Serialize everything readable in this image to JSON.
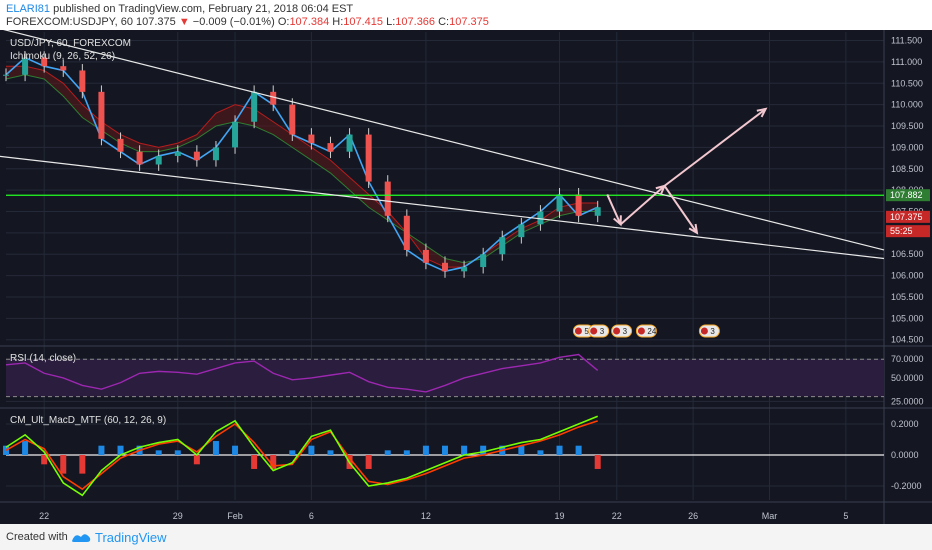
{
  "header": {
    "user": "ELARI81",
    "published_text": "published on TradingView.com, February 21, 2018 06:04 EST",
    "symbol": "FOREXCOM:USDJPY, 60",
    "last": "107.375",
    "change": "−0.009 (−0.01%)",
    "open_label": "O:",
    "open": "107.384",
    "high_label": "H:",
    "high": "107.415",
    "low_label": "L:",
    "low": "107.366",
    "close_label": "C:",
    "close": "107.375"
  },
  "footer": {
    "created": "Created with",
    "brand": "TradingView"
  },
  "colors": {
    "bg": "#141722",
    "grid": "#242938",
    "up": "#26a69a",
    "down": "#ef5350",
    "green_line": "#22ff22",
    "white_lines": "#e8e8e8",
    "arrows": "#f3c7cf",
    "rsi": "#9c27b0",
    "rsi_band": "#2a1d3d",
    "macd_up": "#1e88e5",
    "macd_dn": "#e53935"
  },
  "chart_data": [
    {
      "type": "line",
      "title": "USD/JPY, 60, FOREXCOM",
      "indicator": "Ichimoku (9, 26, 52, 26)",
      "ylim": [
        104.4,
        111.7
      ],
      "y_ticks": [
        "111.500",
        "111.000",
        "110.500",
        "110.000",
        "109.500",
        "109.000",
        "108.500",
        "108.000",
        "107.500",
        "107.000",
        "106.500",
        "106.000",
        "105.500",
        "105.000",
        "104.500"
      ],
      "x_ticks": [
        "22",
        "29",
        "Feb",
        "6",
        "12",
        "19",
        "22",
        "26",
        "Mar",
        "5"
      ],
      "x_tick_index": [
        2,
        9,
        12,
        16,
        22,
        29,
        32,
        36,
        40,
        44
      ],
      "price_labels": [
        {
          "text": "107.882",
          "value": 107.882,
          "color": "#2e7d32"
        },
        {
          "text": "107.375",
          "value": 107.375,
          "color": "#c62828"
        },
        {
          "text": "55:25",
          "value": 107.04,
          "color": "#c62828"
        }
      ],
      "horizontal_level": 107.88,
      "x_days": [
        0,
        1,
        2,
        3,
        4,
        5,
        6,
        7,
        8,
        9,
        10,
        11,
        12,
        13,
        14,
        15,
        16,
        17,
        18,
        19,
        20,
        21,
        22,
        23,
        24,
        25,
        26,
        27,
        28,
        29,
        30,
        31
      ],
      "close": [
        110.7,
        111.1,
        110.9,
        110.8,
        110.3,
        109.2,
        108.9,
        108.6,
        108.8,
        108.9,
        108.7,
        109.0,
        109.6,
        110.3,
        110.0,
        109.3,
        109.1,
        108.9,
        109.3,
        108.2,
        107.4,
        106.6,
        106.3,
        106.1,
        106.2,
        106.5,
        106.9,
        107.2,
        107.5,
        107.9,
        107.4,
        107.6
      ],
      "cloud_a": [
        110.6,
        110.7,
        110.6,
        110.2,
        109.7,
        109.4,
        109.1,
        108.9,
        108.9,
        109.0,
        109.2,
        109.5,
        109.6,
        109.5,
        109.3,
        109.0,
        108.7,
        108.4,
        108.0,
        107.6,
        107.3,
        107.0,
        106.7,
        106.4,
        106.3,
        106.4,
        106.7,
        107.0,
        107.2,
        107.4,
        107.5,
        107.5
      ],
      "cloud_b": [
        110.9,
        110.9,
        110.8,
        110.5,
        110.0,
        109.6,
        109.3,
        109.1,
        109.0,
        109.1,
        109.3,
        109.8,
        110.0,
        109.9,
        109.6,
        109.3,
        109.0,
        108.7,
        108.3,
        107.9,
        107.5,
        107.0,
        106.4,
        106.2,
        106.2,
        106.5,
        106.8,
        107.1,
        107.3,
        107.6,
        107.7,
        107.7
      ],
      "trendlines": [
        {
          "name": "upper",
          "from": [
            -0.5,
            111.8
          ],
          "to": [
            46,
            106.6
          ]
        },
        {
          "name": "lower",
          "from": [
            -0.5,
            108.8
          ],
          "to": [
            46,
            106.4
          ]
        }
      ],
      "arrows": [
        {
          "from": [
            31.5,
            107.9
          ],
          "to": [
            32.2,
            107.2
          ]
        },
        {
          "from": [
            32.2,
            107.2
          ],
          "to": [
            34.5,
            108.1
          ]
        },
        {
          "from": [
            34.5,
            108.1
          ],
          "to": [
            36.2,
            107.0
          ]
        },
        {
          "from": [
            34.5,
            108.1
          ],
          "to": [
            39.8,
            109.9
          ]
        }
      ],
      "event_badges": [
        {
          "text": "5",
          "day": 30.2
        },
        {
          "text": "3",
          "day": 31.0
        },
        {
          "text": "3",
          "day": 32.2
        },
        {
          "text": "24",
          "day": 33.5
        },
        {
          "text": "3",
          "day": 36.8
        }
      ]
    },
    {
      "type": "line",
      "title": "RSI (14, close)",
      "ylim": [
        20,
        82
      ],
      "y_ticks": [
        "70.0000",
        "50.0000",
        "25.0000"
      ],
      "bands": [
        30,
        70
      ],
      "x_days": [
        0,
        1,
        2,
        3,
        4,
        5,
        6,
        7,
        8,
        9,
        10,
        11,
        12,
        13,
        14,
        15,
        16,
        17,
        18,
        19,
        20,
        21,
        22,
        23,
        24,
        25,
        26,
        27,
        28,
        29,
        30,
        31
      ],
      "values": [
        64,
        66,
        55,
        50,
        42,
        38,
        45,
        55,
        57,
        56,
        54,
        60,
        66,
        68,
        55,
        48,
        50,
        53,
        56,
        46,
        40,
        38,
        35,
        42,
        50,
        55,
        60,
        63,
        66,
        72,
        75,
        58
      ]
    },
    {
      "type": "bar",
      "title": "CM_Ult_MacD_MTF (60, 12, 26, 9)",
      "ylim": [
        -0.29,
        0.29
      ],
      "y_ticks": [
        "0.2000",
        "0.0000",
        "-0.2000"
      ],
      "x_days": [
        0,
        1,
        2,
        3,
        4,
        5,
        6,
        7,
        8,
        9,
        10,
        11,
        12,
        13,
        14,
        15,
        16,
        17,
        18,
        19,
        20,
        21,
        22,
        23,
        24,
        25,
        26,
        27,
        28,
        29,
        30,
        31
      ],
      "macd": [
        0.05,
        0.13,
        0.02,
        -0.18,
        -0.26,
        -0.1,
        0.0,
        0.05,
        0.08,
        0.1,
        0.0,
        0.15,
        0.22,
        0.05,
        -0.1,
        -0.05,
        0.12,
        0.16,
        -0.05,
        -0.2,
        -0.18,
        -0.15,
        -0.1,
        -0.05,
        0.0,
        0.02,
        0.05,
        0.08,
        0.1,
        0.15,
        0.2,
        0.25
      ],
      "signal": [
        0.03,
        0.1,
        0.04,
        -0.14,
        -0.22,
        -0.12,
        -0.02,
        0.03,
        0.07,
        0.09,
        0.02,
        0.12,
        0.2,
        0.08,
        -0.07,
        -0.06,
        0.1,
        0.15,
        -0.02,
        -0.17,
        -0.19,
        -0.16,
        -0.12,
        -0.07,
        -0.02,
        0.0,
        0.03,
        0.06,
        0.09,
        0.13,
        0.18,
        0.22
      ],
      "hist": [
        0.02,
        0.03,
        -0.02,
        -0.04,
        -0.04,
        0.02,
        0.02,
        0.02,
        0.01,
        0.01,
        -0.02,
        0.03,
        0.02,
        -0.03,
        -0.03,
        0.01,
        0.02,
        0.01,
        -0.03,
        -0.03,
        0.01,
        0.01,
        0.02,
        0.02,
        0.02,
        0.02,
        0.02,
        0.02,
        0.01,
        0.02,
        0.02,
        -0.03
      ]
    }
  ]
}
